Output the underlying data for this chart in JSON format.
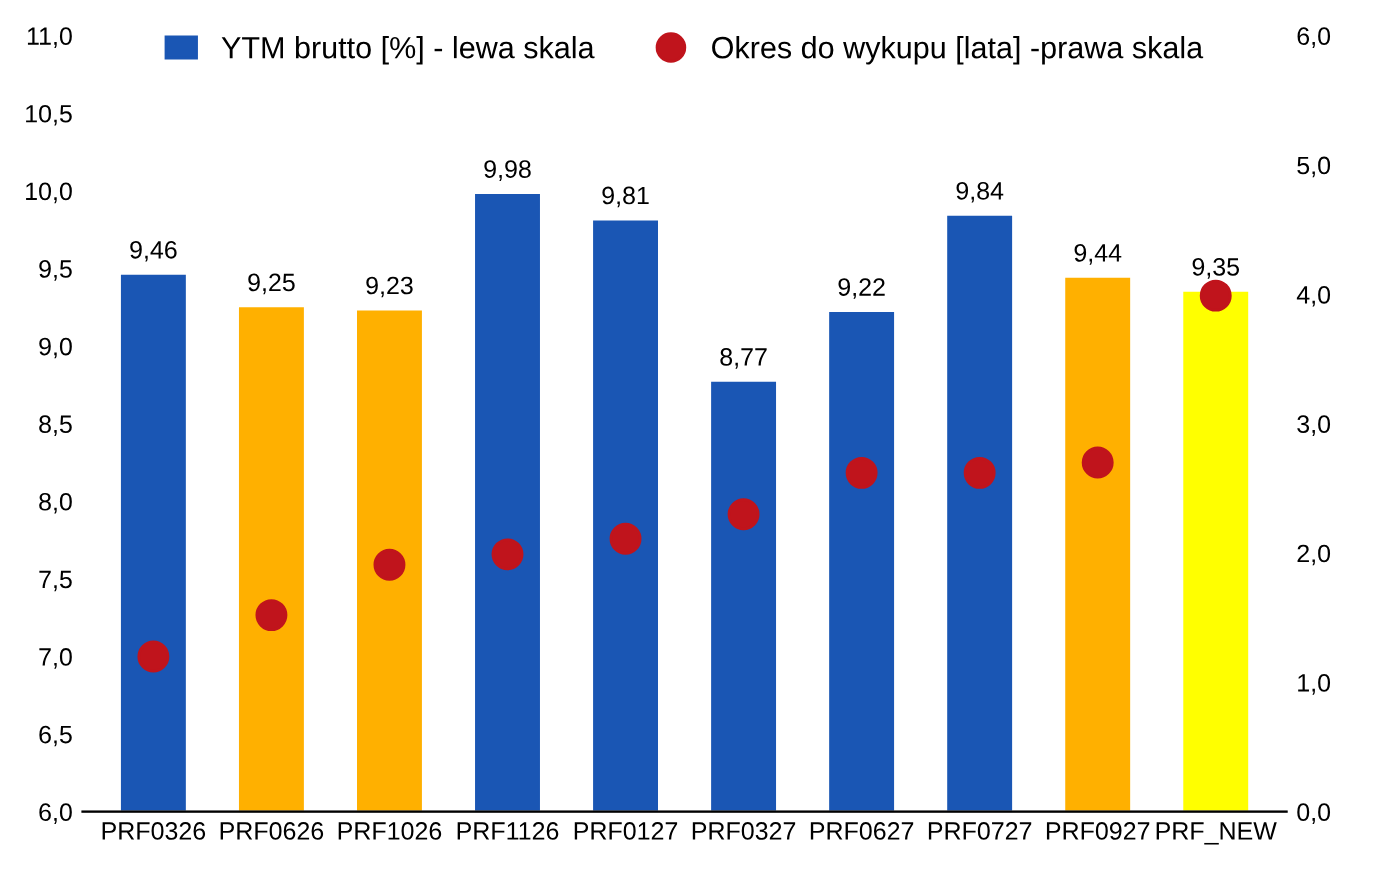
{
  "chart_data": {
    "type": "bar",
    "categories": [
      "PRF0326",
      "PRF0626",
      "PRF1026",
      "PRF1126",
      "PRF0127",
      "PRF0327",
      "PRF0627",
      "PRF0727",
      "PRF0927",
      "PRF_NEW"
    ],
    "series": [
      {
        "name": "YTM brutto [%] - lewa skala",
        "color": "#1a56b4",
        "colors": [
          "#1a56b4",
          "#ffb000",
          "#ffb000",
          "#1a56b4",
          "#1a56b4",
          "#1a56b4",
          "#1a56b4",
          "#1a56b4",
          "#ffb000",
          "#ffff00"
        ],
        "values": [
          9.46,
          9.25,
          9.23,
          9.98,
          9.81,
          8.77,
          9.22,
          9.84,
          9.44,
          9.35
        ],
        "value_labels": [
          "9,46",
          "9,25",
          "9,23",
          "9,98",
          "9,81",
          "8,77",
          "9,22",
          "9,84",
          "9,44",
          "9,35"
        ]
      },
      {
        "name": "Okres do wykupu [lata] -prawa skala",
        "type": "scatter",
        "axis": "y2",
        "color": "#c0141c",
        "marker": "circle",
        "values": [
          1.2,
          1.52,
          1.91,
          1.99,
          2.11,
          2.3,
          2.62,
          2.62,
          2.7,
          3.99
        ]
      }
    ],
    "ylim": [
      6.0,
      11.0
    ],
    "yticks": [
      {
        "value": 6.0,
        "label": "6,0"
      },
      {
        "value": 6.5,
        "label": "6,5"
      },
      {
        "value": 7.0,
        "label": "7,0"
      },
      {
        "value": 7.5,
        "label": "7,5"
      },
      {
        "value": 8.0,
        "label": "8,0"
      },
      {
        "value": 8.5,
        "label": "8,5"
      },
      {
        "value": 9.0,
        "label": "9,0"
      },
      {
        "value": 9.5,
        "label": "9,5"
      },
      {
        "value": 10.0,
        "label": "10,0"
      },
      {
        "value": 10.5,
        "label": "10,5"
      },
      {
        "value": 11.0,
        "label": "11,0"
      }
    ],
    "y2lim": [
      0.0,
      6.0
    ],
    "y2ticks": [
      {
        "value": 0.0,
        "label": "0,0"
      },
      {
        "value": 1.0,
        "label": "1,0"
      },
      {
        "value": 2.0,
        "label": "2,0"
      },
      {
        "value": 3.0,
        "label": "3,0"
      },
      {
        "value": 4.0,
        "label": "4,0"
      },
      {
        "value": 5.0,
        "label": "5,0"
      },
      {
        "value": 6.0,
        "label": "6,0"
      }
    ],
    "grid": false,
    "legend": "top"
  }
}
